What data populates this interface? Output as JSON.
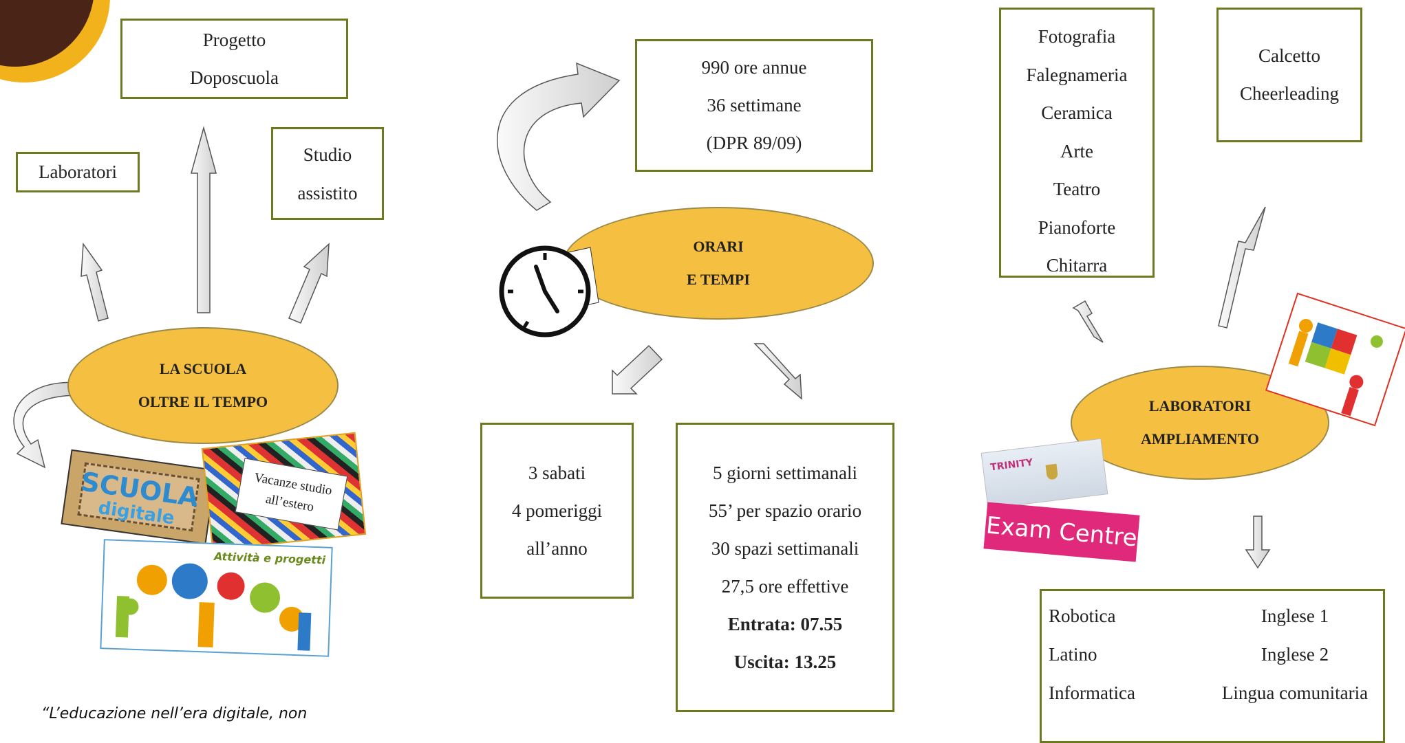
{
  "left": {
    "ellipse": [
      "LA SCUOLA",
      "OLTRE IL TEMPO"
    ],
    "box_progetto": [
      "Progetto",
      "Doposcuola"
    ],
    "box_laboratori": "Laboratori",
    "box_studio": [
      "Studio",
      "assistito"
    ],
    "vacanze": [
      "Vacanze studio",
      "all’estero"
    ],
    "scuola_digitale": [
      "SCUOLA",
      "digitale"
    ],
    "attivita": "Attività e progetti"
  },
  "middle": {
    "ellipse": [
      "ORARI",
      "E TEMPI"
    ],
    "box_ore": [
      "990 ore annue",
      "36 settimane",
      "(DPR 89/09)"
    ],
    "box_sabati": [
      "3 sabati",
      "4 pomeriggi",
      "all’anno"
    ],
    "box_giorni": [
      "5 giorni settimanali",
      "55’ per spazio orario",
      "30 spazi settimanali",
      "27,5 ore effettive"
    ],
    "entrata": "Entrata: 07.55",
    "uscita": "Uscita: 13.25"
  },
  "right": {
    "ellipse": [
      "LABORATORI",
      "AMPLIAMENTO"
    ],
    "box_attivita": [
      "Fotografia",
      "Falegnameria",
      "Ceramica",
      "Arte",
      "Teatro",
      "Pianoforte",
      "Chitarra"
    ],
    "box_sport": [
      "Calcetto",
      "Cheerleading"
    ],
    "box_corsi": {
      "left": [
        "Robotica",
        "Latino",
        "Informatica"
      ],
      "right": [
        "Inglese 1",
        "Inglese 2",
        "Lingua comunitaria"
      ]
    },
    "trinity": "TRINITY",
    "exam_centre": "Exam Centre"
  },
  "quote": "“L’educazione nell’era digitale, non"
}
